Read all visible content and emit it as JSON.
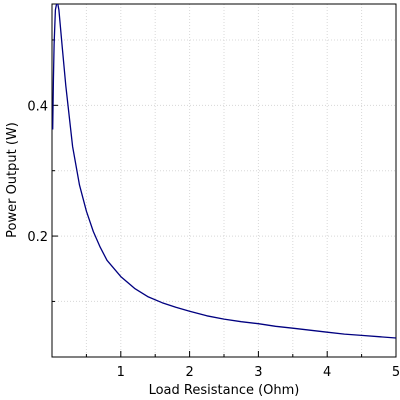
{
  "chart_data": {
    "type": "line",
    "title": "",
    "xlabel": "Load Resistance (Ohm)",
    "ylabel": "Power Output (W)",
    "xlim": [
      0,
      5
    ],
    "ylim": [
      0.015,
      0.555
    ],
    "x_ticks": [
      1,
      2,
      3,
      4,
      5
    ],
    "x_tick_labels": [
      "1",
      "2",
      "3",
      "4",
      "5"
    ],
    "y_ticks": [
      0.2,
      0.4
    ],
    "y_tick_labels": [
      "0.2",
      "0.4"
    ],
    "grid": true,
    "legend": "none",
    "series": [
      {
        "color": "#000080",
        "x": [
          0.01,
          0.02,
          0.03,
          0.05,
          0.075,
          0.1,
          0.15,
          0.2,
          0.3,
          0.4,
          0.5,
          0.6,
          0.7,
          0.8,
          1.0,
          1.2,
          1.4,
          1.6,
          1.8,
          2.0,
          2.25,
          2.5,
          2.75,
          3.0,
          3.25,
          3.5,
          3.75,
          4.0,
          4.25,
          4.5,
          4.75,
          5.0
        ],
        "y": [
          0.363,
          0.438,
          0.493,
          0.546,
          0.56,
          0.546,
          0.488,
          0.43,
          0.337,
          0.278,
          0.238,
          0.207,
          0.183,
          0.163,
          0.138,
          0.12,
          0.107,
          0.098,
          0.091,
          0.085,
          0.078,
          0.073,
          0.069,
          0.066,
          0.062,
          0.059,
          0.056,
          0.053,
          0.05,
          0.048,
          0.046,
          0.044
        ]
      }
    ]
  }
}
